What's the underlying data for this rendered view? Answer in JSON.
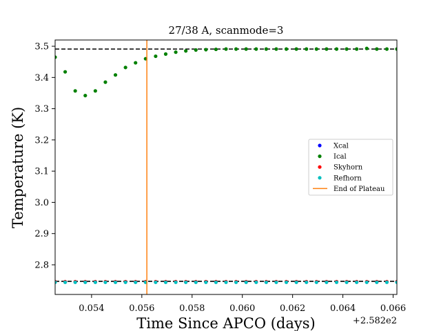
{
  "chart_data": {
    "type": "scatter",
    "title": "27/38 A, scanmode=3",
    "xlabel": "Time Since APCO (days)",
    "ylabel": "Temperature (K)",
    "x_offset_label": "+2.582e2",
    "xlim": [
      0.05255,
      0.06615
    ],
    "ylim": [
      2.705,
      3.52
    ],
    "xticks": [
      0.054,
      0.056,
      0.058,
      0.06,
      0.062,
      0.064,
      0.066
    ],
    "xtick_labels": [
      "0.054",
      "0.056",
      "0.058",
      "0.060",
      "0.062",
      "0.064",
      "0.066"
    ],
    "yticks": [
      2.8,
      2.9,
      3.0,
      3.1,
      3.2,
      3.3,
      3.4,
      3.5
    ],
    "ytick_labels": [
      "2.8",
      "2.9",
      "3.0",
      "3.1",
      "3.2",
      "3.3",
      "3.4",
      "3.5"
    ],
    "grid": false,
    "legend_position": "center-right",
    "x": [
      0.05255,
      0.05295,
      0.05335,
      0.05375,
      0.05415,
      0.05455,
      0.05495,
      0.05535,
      0.05575,
      0.05615,
      0.05655,
      0.05695,
      0.05735,
      0.05775,
      0.05815,
      0.05855,
      0.05895,
      0.05935,
      0.05975,
      0.06015,
      0.06055,
      0.06095,
      0.06135,
      0.06175,
      0.06215,
      0.06255,
      0.06295,
      0.06335,
      0.06375,
      0.06415,
      0.06455,
      0.06495,
      0.06535,
      0.06575,
      0.06615
    ],
    "series": [
      {
        "name": "Xcal",
        "color": "#0000ff",
        "marker": "dot",
        "y": [
          2.745,
          2.745,
          2.745,
          2.745,
          2.745,
          2.745,
          2.745,
          2.745,
          2.745,
          2.745,
          2.745,
          2.745,
          2.745,
          2.745,
          2.745,
          2.745,
          2.745,
          2.745,
          2.745,
          2.745,
          2.745,
          2.745,
          2.745,
          2.745,
          2.745,
          2.745,
          2.745,
          2.745,
          2.745,
          2.745,
          2.745,
          2.745,
          2.745,
          2.745,
          2.745
        ]
      },
      {
        "name": "Ical",
        "color": "#008000",
        "marker": "dot",
        "y": [
          3.465,
          3.418,
          3.357,
          3.342,
          3.357,
          3.385,
          3.408,
          3.432,
          3.447,
          3.46,
          3.468,
          3.475,
          3.481,
          3.485,
          3.488,
          3.489,
          3.49,
          3.491,
          3.491,
          3.491,
          3.491,
          3.491,
          3.491,
          3.491,
          3.491,
          3.491,
          3.491,
          3.491,
          3.491,
          3.491,
          3.491,
          3.493,
          3.491,
          3.491,
          3.491
        ]
      },
      {
        "name": "Skyhorn",
        "color": "#ff0000",
        "marker": "dot",
        "y": [
          2.746,
          2.746,
          2.746,
          2.746,
          2.746,
          2.746,
          2.746,
          2.746,
          2.746,
          2.746,
          2.746,
          2.746,
          2.746,
          2.746,
          2.746,
          2.746,
          2.746,
          2.746,
          2.746,
          2.746,
          2.746,
          2.746,
          2.746,
          2.746,
          2.746,
          2.746,
          2.746,
          2.746,
          2.746,
          2.746,
          2.746,
          2.746,
          2.746,
          2.746,
          2.746
        ]
      },
      {
        "name": "Refhorn",
        "color": "#00bfbf",
        "marker": "dot",
        "y": [
          2.744,
          2.744,
          2.744,
          2.744,
          2.744,
          2.744,
          2.744,
          2.744,
          2.744,
          2.744,
          2.744,
          2.744,
          2.744,
          2.744,
          2.744,
          2.744,
          2.744,
          2.744,
          2.744,
          2.744,
          2.744,
          2.744,
          2.744,
          2.744,
          2.744,
          2.744,
          2.744,
          2.744,
          2.744,
          2.744,
          2.744,
          2.744,
          2.744,
          2.744,
          2.744
        ]
      }
    ],
    "vertical_lines": [
      {
        "name": "End of Plateau",
        "x": 0.0562,
        "color": "#ff7f0e"
      }
    ],
    "horizontal_reference_lines": [
      {
        "y": 3.491,
        "color": "#000000",
        "style": "dashed"
      },
      {
        "y": 2.747,
        "color": "#000000",
        "style": "dashed"
      }
    ]
  }
}
